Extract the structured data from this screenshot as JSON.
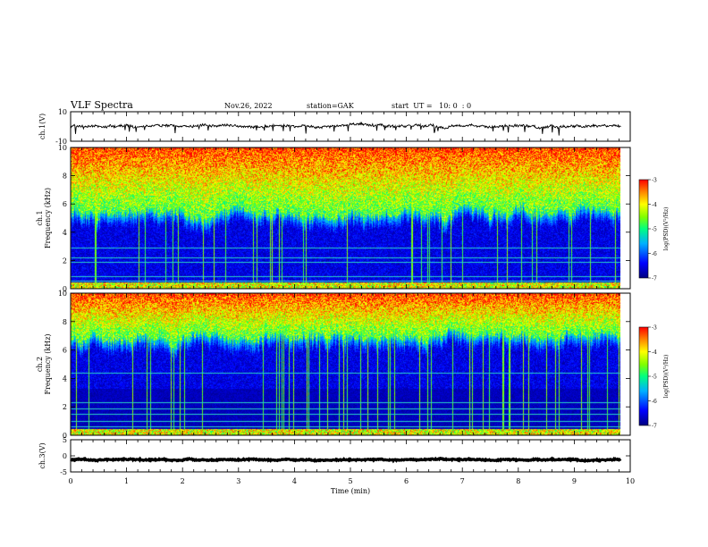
{
  "header": {
    "title": "VLF Spectra",
    "date": "Nov.26, 2022",
    "station": "station=GAK",
    "start": "start  UT =   10: 0  : 0"
  },
  "chart_data": {
    "type": "multi-panel spectrogram",
    "x": {
      "label": "Time  (min)",
      "range": [
        0,
        10
      ],
      "ticks": [
        0,
        1,
        2,
        3,
        4,
        5,
        6,
        7,
        8,
        9,
        10
      ],
      "data_end": 9.83
    },
    "panels": [
      {
        "id": "ch1-waveform",
        "type": "line",
        "ylabel": "ch.1(V)",
        "yrange": [
          -10,
          10
        ],
        "yticks": [
          10,
          -10
        ],
        "baseline": 0.3,
        "noise": 1.4
      },
      {
        "id": "ch1-spectrogram",
        "type": "heatmap",
        "ylabel_line1": "ch.1",
        "ylabel_line2": "Frequency  (kHz)",
        "yrange": [
          0,
          10
        ],
        "yticks": [
          0,
          2,
          4,
          6,
          8,
          10
        ],
        "colorbar": {
          "label": "log(PSD)(V²/Hz)",
          "range": [
            -7,
            -3
          ],
          "ticks": [
            -3,
            -4,
            -5,
            -6,
            -7
          ]
        },
        "edge_khz": 5.3
      },
      {
        "id": "ch2-spectrogram",
        "type": "heatmap",
        "ylabel_line1": "ch.2",
        "ylabel_line2": "Frequency  (kHz)",
        "yrange": [
          0,
          10
        ],
        "yticks": [
          0,
          2,
          4,
          6,
          8,
          10
        ],
        "colorbar": {
          "label": "log(PSD)(V²/Hz)",
          "range": [
            -7,
            -3
          ],
          "ticks": [
            -3,
            -4,
            -5,
            -6,
            -7
          ]
        },
        "edge_khz": 6.8
      },
      {
        "id": "ch3-waveform",
        "type": "line",
        "ylabel": "ch.3(V)",
        "yrange": [
          -5,
          5
        ],
        "yticks": [
          5,
          0,
          -5
        ],
        "baseline": -1.2,
        "noise": 0.3
      }
    ]
  }
}
